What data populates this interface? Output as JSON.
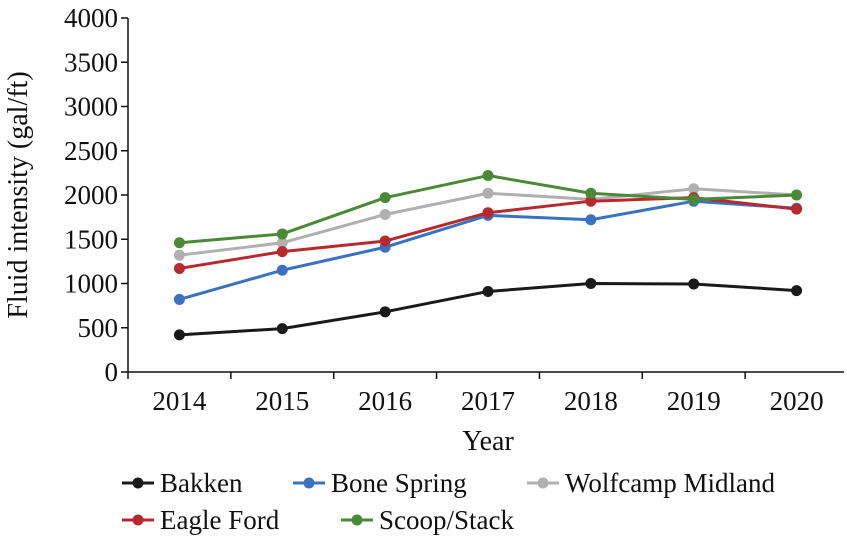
{
  "chart_data": {
    "type": "line",
    "title": "",
    "xlabel": "Year",
    "ylabel": "Fluid intensity (gal/ft)",
    "ylim": [
      0,
      4000
    ],
    "yticks": [
      0,
      500,
      1000,
      1500,
      2000,
      2500,
      3000,
      3500,
      4000
    ],
    "categories": [
      "2014",
      "2015",
      "2016",
      "2017",
      "2018",
      "2019",
      "2020"
    ],
    "grid": false,
    "legend_position": "bottom",
    "series": [
      {
        "name": "Bakken",
        "color": "#1a1a1a",
        "values": [
          420,
          490,
          680,
          910,
          1000,
          995,
          920
        ]
      },
      {
        "name": "Bone Spring",
        "color": "#3a72c0",
        "values": [
          820,
          1150,
          1410,
          1770,
          1720,
          1930,
          1850
        ]
      },
      {
        "name": "Wolfcamp Midland",
        "color": "#b0b0b0",
        "values": [
          1320,
          1460,
          1780,
          2020,
          1950,
          2070,
          2000
        ]
      },
      {
        "name": "Eagle Ford",
        "color": "#b7292e",
        "values": [
          1170,
          1360,
          1480,
          1800,
          1930,
          1970,
          1840
        ]
      },
      {
        "name": "Scoop/Stack",
        "color": "#4a8a36",
        "values": [
          1460,
          1560,
          1970,
          2220,
          2020,
          1950,
          2000
        ]
      }
    ]
  }
}
